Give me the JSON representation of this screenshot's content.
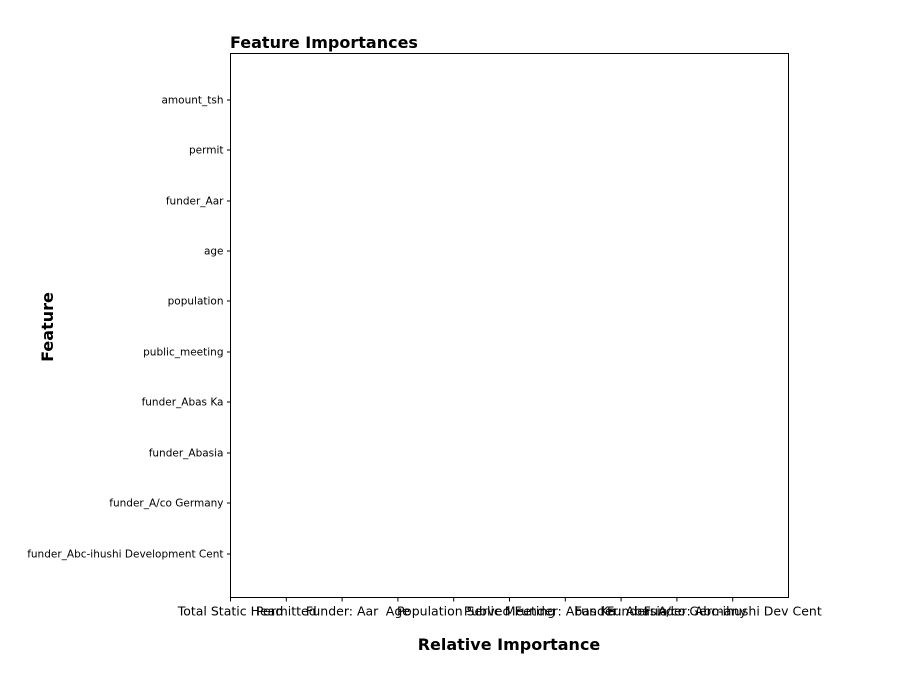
{
  "chart_data": {
    "type": "bar",
    "orientation": "horizontal",
    "title": "Feature Importances",
    "xlabel": "Relative Importance",
    "ylabel": "Feature",
    "categories": [
      "amount_tsh",
      "permit",
      "funder_Aar",
      "age",
      "population",
      "public_meeting",
      "funder_Abas Ka",
      "funder_Abasia",
      "funder_A/co Germany",
      "funder_Abc-ihushi Development Cent"
    ],
    "values": [
      0,
      0,
      0,
      0,
      0,
      0,
      0,
      0,
      0,
      0
    ],
    "xtick_labels": [
      "Total Static Head",
      "Permitted",
      "Funder: Aar",
      "Age",
      "Population Served",
      "Public Meeting",
      "Funder: Abas Ka",
      "Funder: Abasia",
      "Funder: A/co Germany",
      "Funder: Abc-ihushi Dev Cent"
    ],
    "bar_color": "#e6a23c",
    "grid": false,
    "legend": "none"
  }
}
